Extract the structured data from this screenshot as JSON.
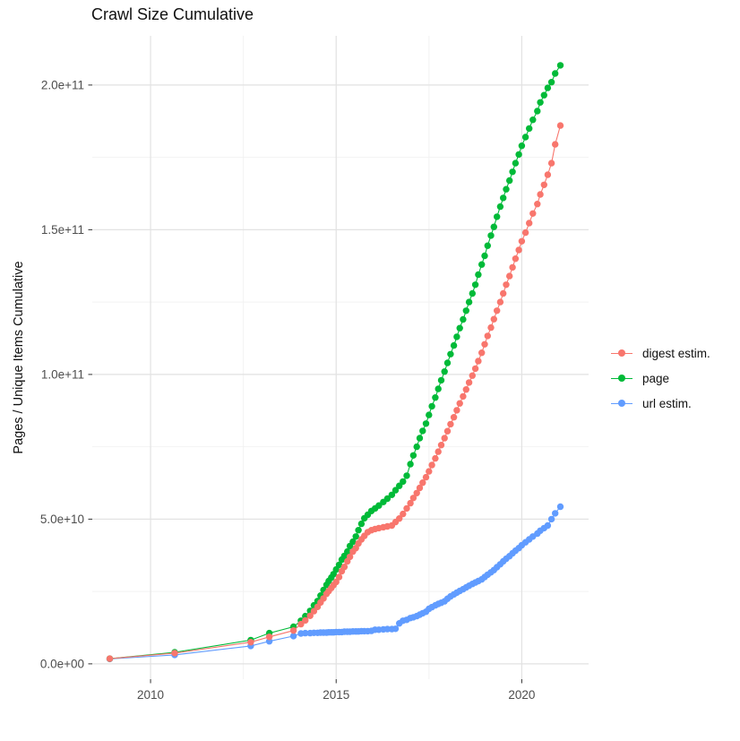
{
  "chart_data": {
    "type": "line",
    "title": "Crawl Size Cumulative",
    "xlabel": "",
    "ylabel": "Pages / Unique Items Cumulative",
    "grid": "on",
    "legend_position": "right",
    "y_unit": 1000000000,
    "x_axis": {
      "ticks": [
        2010,
        2015,
        2020
      ],
      "tick_labels": [
        "2010",
        "2015",
        "2020"
      ],
      "minor_ticks": [
        2012.5,
        2017.5
      ],
      "range": [
        2008.43,
        2021.8
      ]
    },
    "y_axis": {
      "ticks_billions": [
        0,
        50,
        100,
        150,
        200
      ],
      "tick_labels": [
        "0.0e+00",
        "5.0e+10",
        "1.0e+11",
        "1.5e+11",
        "2.0e+11"
      ],
      "minor_ticks_billions": [
        25,
        75,
        125,
        175
      ],
      "range_billions": [
        -5.3,
        217
      ]
    },
    "x_years": [
      2008.9,
      2010.65,
      2012.7,
      2013.2,
      2013.85,
      2014.05,
      2014.17,
      2014.3,
      2014.4,
      2014.5,
      2014.58,
      2014.66,
      2014.74,
      2014.8,
      2014.87,
      2014.93,
      2015.0,
      2015.08,
      2015.15,
      2015.22,
      2015.3,
      2015.37,
      2015.45,
      2015.53,
      2015.6,
      2015.68,
      2015.76,
      2015.85,
      2015.95,
      2016.05,
      2016.15,
      2016.27,
      2016.38,
      2016.5,
      2016.6,
      2016.7,
      2016.8,
      2016.9,
      2017.0,
      2017.08,
      2017.17,
      2017.25,
      2017.33,
      2017.42,
      2017.5,
      2017.58,
      2017.67,
      2017.75,
      2017.83,
      2017.92,
      2018.0,
      2018.08,
      2018.17,
      2018.25,
      2018.33,
      2018.42,
      2018.5,
      2018.58,
      2018.67,
      2018.75,
      2018.83,
      2018.92,
      2019.0,
      2019.08,
      2019.17,
      2019.25,
      2019.33,
      2019.42,
      2019.5,
      2019.58,
      2019.67,
      2019.75,
      2019.83,
      2019.92,
      2020.0,
      2020.1,
      2020.2,
      2020.3,
      2020.42,
      2020.5,
      2020.6,
      2020.7,
      2020.8,
      2020.9,
      2021.04
    ],
    "series": [
      {
        "name": "digest estim.",
        "color": "#F8766D",
        "y_billions": [
          1.8,
          3.7,
          7.5,
          9.3,
          11.5,
          13.7,
          15.0,
          16.6,
          18.2,
          19.7,
          21.2,
          22.6,
          24.2,
          25.1,
          26.2,
          27.2,
          28.3,
          30.0,
          32.0,
          33.5,
          35.4,
          37.0,
          38.8,
          40.0,
          41.6,
          43.0,
          44.2,
          45.5,
          46.2,
          46.6,
          46.9,
          47.2,
          47.5,
          47.8,
          49.0,
          50.2,
          51.8,
          53.7,
          55.5,
          57.3,
          59.0,
          60.8,
          62.6,
          64.5,
          66.5,
          68.7,
          71.0,
          73.3,
          75.6,
          78.0,
          80.4,
          82.8,
          85.2,
          87.6,
          90.0,
          92.4,
          94.8,
          97.2,
          99.6,
          102.0,
          104.6,
          107.5,
          110.4,
          113.3,
          116.2,
          119.1,
          122.0,
          125.0,
          128.0,
          131.0,
          134.0,
          137.0,
          140.0,
          143.0,
          146.0,
          149.0,
          152.3,
          155.6,
          158.9,
          162.2,
          165.5,
          169.0,
          173.0,
          179.5,
          186.0
        ]
      },
      {
        "name": "page",
        "color": "#00BA38",
        "y_billions": [
          1.8,
          4.0,
          8.2,
          10.6,
          12.8,
          14.9,
          16.5,
          18.3,
          20.2,
          21.7,
          23.6,
          25.5,
          27.3,
          28.6,
          29.8,
          31.0,
          32.6,
          34.2,
          36.0,
          37.3,
          38.8,
          40.7,
          42.2,
          44.0,
          46.2,
          48.4,
          50.3,
          51.5,
          52.8,
          53.7,
          54.7,
          55.9,
          57.1,
          58.4,
          60.0,
          61.5,
          63.0,
          65.0,
          69.0,
          72.0,
          75.0,
          78.0,
          80.5,
          83.0,
          86.0,
          89.0,
          92.0,
          95.0,
          98.0,
          101.0,
          104.0,
          107.0,
          110.0,
          113.0,
          116.0,
          119.0,
          122.0,
          125.0,
          128.0,
          131.0,
          134.5,
          138.0,
          141.0,
          144.5,
          148.0,
          151.0,
          154.5,
          158.0,
          161.0,
          164.0,
          167.0,
          170.0,
          173.0,
          176.0,
          179.0,
          182.0,
          185.0,
          188.0,
          191.0,
          194.0,
          196.5,
          199.0,
          201.0,
          204.0,
          206.8
        ]
      },
      {
        "name": "url estim.",
        "color": "#619CFF",
        "y_billions": [
          1.7,
          3.1,
          6.2,
          7.8,
          9.6,
          10.5,
          10.6,
          10.6,
          10.7,
          10.7,
          10.8,
          10.8,
          10.8,
          10.9,
          10.9,
          10.9,
          11.0,
          11.0,
          11.0,
          11.1,
          11.1,
          11.1,
          11.2,
          11.2,
          11.2,
          11.3,
          11.3,
          11.3,
          11.4,
          11.8,
          11.8,
          11.9,
          12.0,
          12.0,
          12.1,
          14.0,
          14.9,
          15.2,
          15.8,
          16.1,
          16.5,
          17.0,
          17.5,
          18.0,
          19.0,
          19.6,
          20.2,
          20.7,
          21.1,
          21.6,
          22.5,
          23.3,
          24.0,
          24.6,
          25.2,
          25.8,
          26.4,
          27.0,
          27.6,
          28.1,
          28.6,
          29.2,
          30.0,
          30.8,
          31.6,
          32.4,
          33.4,
          34.4,
          35.4,
          36.3,
          37.2,
          38.2,
          39.1,
          40.0,
          41.0,
          42.0,
          43.0,
          44.0,
          45.0,
          46.0,
          46.9,
          47.8,
          50.0,
          52.0,
          54.3
        ]
      }
    ]
  }
}
